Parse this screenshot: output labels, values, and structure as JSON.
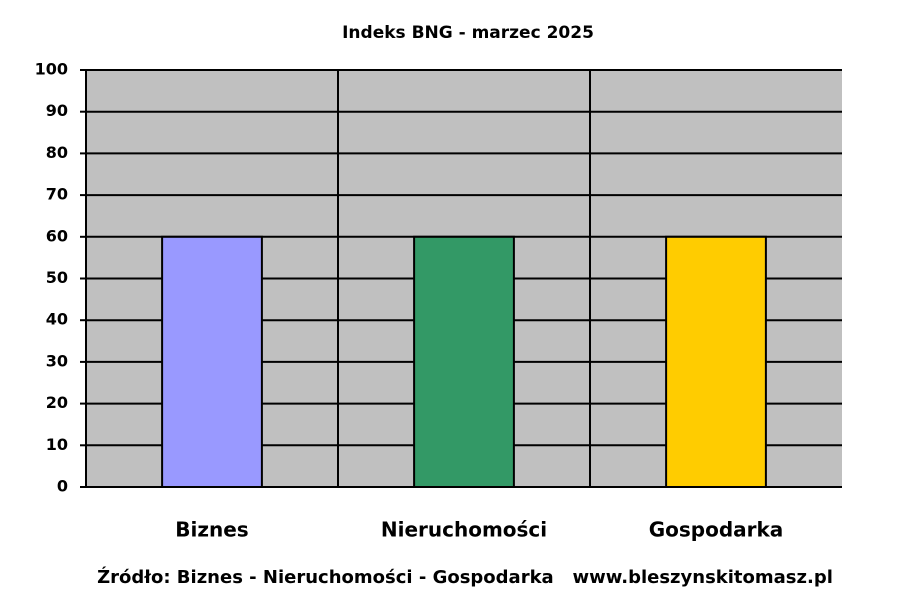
{
  "chart_data": {
    "type": "bar",
    "title": "Indeks BNG - marzec 2025",
    "categories": [
      "Biznes",
      "Nieruchomości",
      "Gospodarka"
    ],
    "values": [
      60,
      60,
      60
    ],
    "colors": [
      "#9999ff",
      "#339966",
      "#ffcc00"
    ],
    "ylim": [
      0,
      100
    ],
    "yticks": [
      0,
      10,
      20,
      30,
      40,
      50,
      60,
      70,
      80,
      90,
      100
    ],
    "grid": true,
    "source": "Źródło: Biznes - Nieruchomości - Gospodarka   www.bleszynskitomasz.pl"
  }
}
